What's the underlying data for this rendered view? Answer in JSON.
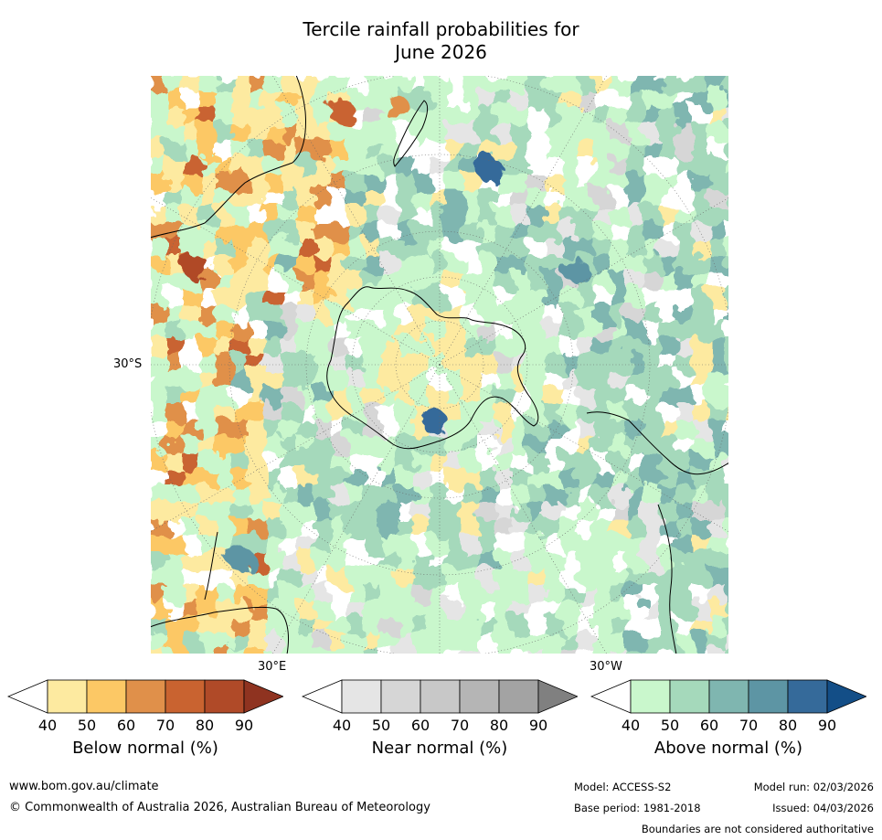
{
  "title": {
    "line1": "Tercile rainfall probabilities for",
    "line2": "June 2026"
  },
  "map": {
    "projection": "south-polar-stereographic",
    "lat_labels": {
      "left": "30°S",
      "bottom_left": "30°E",
      "bottom_right": "30°W"
    },
    "colors": {
      "ocean_base": "#ffffff",
      "below": [
        "#fdeaa0",
        "#fcc865",
        "#e0904a",
        "#c96330",
        "#b04a28",
        "#8f3320"
      ],
      "near": [
        "#e5e5e5",
        "#d6d6d6",
        "#c8c8c8",
        "#b5b5b5",
        "#a3a3a3",
        "#808080"
      ],
      "above": [
        "#c9f7cc",
        "#a5d9bb",
        "#7fb6b0",
        "#5d95a4",
        "#356a9a",
        "#134e87"
      ],
      "coast": "#000000",
      "grid": "#666666"
    }
  },
  "colorbars": [
    {
      "id": "below",
      "label": "Below normal (%)",
      "ticks": [
        "40",
        "50",
        "60",
        "70",
        "80",
        "90"
      ],
      "colors": [
        "#ffffff",
        "#fdeaa0",
        "#fcc865",
        "#e0904a",
        "#c96330",
        "#b04a28",
        "#8f3320"
      ]
    },
    {
      "id": "near",
      "label": "Near normal (%)",
      "ticks": [
        "40",
        "50",
        "60",
        "70",
        "80",
        "90"
      ],
      "colors": [
        "#ffffff",
        "#e5e5e5",
        "#d6d6d6",
        "#c8c8c8",
        "#b5b5b5",
        "#a3a3a3",
        "#808080"
      ]
    },
    {
      "id": "above",
      "label": "Above normal (%)",
      "ticks": [
        "40",
        "50",
        "60",
        "70",
        "80",
        "90"
      ],
      "colors": [
        "#ffffff",
        "#c9f7cc",
        "#a5d9bb",
        "#7fb6b0",
        "#5d95a4",
        "#356a9a",
        "#134e87"
      ]
    }
  ],
  "footer": {
    "website": "www.bom.gov.au/climate",
    "copyright": "© Commonwealth of Australia 2026, Australian Bureau of Meteorology",
    "model": "Model: ACCESS-S2",
    "model_run": "Model run: 02/03/2026",
    "base_period": "Base period: 1981-2018",
    "issued": "Issued: 04/03/2026",
    "disclaimer": "Boundaries are not considered authoritative"
  }
}
